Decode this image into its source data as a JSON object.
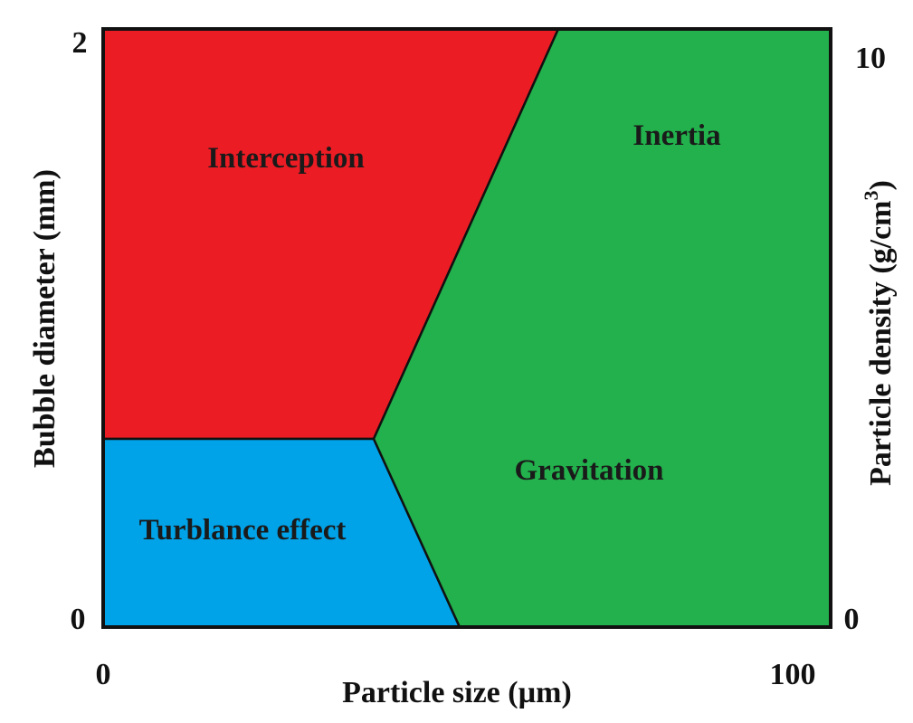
{
  "diagram": {
    "type": "regime-map",
    "x_axis": {
      "label": "Particle size (µm)",
      "min": "0",
      "max": "100"
    },
    "y_axis_left": {
      "label": "Bubble diameter (mm)",
      "min": "0",
      "max": "2"
    },
    "y_axis_right": {
      "label_main": "Particle density (g/cm",
      "label_sup": "3",
      "label_end": ")",
      "min": "0",
      "max": "10"
    },
    "regions": [
      {
        "id": "interception",
        "label": "Interception",
        "color": "#ec1c24"
      },
      {
        "id": "inertia",
        "label": "Inertia",
        "color": "#22b14c"
      },
      {
        "id": "gravitation",
        "label": "Gravitation",
        "color": "#22b14c"
      },
      {
        "id": "turbulence",
        "label": "Turblance effect",
        "color": "#00a2e8"
      }
    ]
  }
}
